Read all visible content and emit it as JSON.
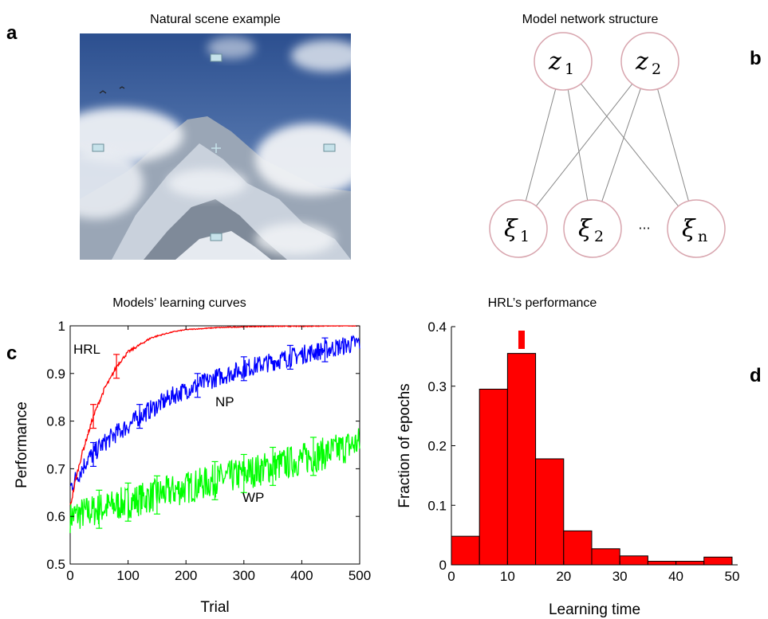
{
  "panels": {
    "a": {
      "letter": "a",
      "title": "Natural scene example"
    },
    "b": {
      "letter": "b",
      "title": "Model network structure"
    },
    "c": {
      "letter": "c",
      "title": "Models’ learning curves"
    },
    "d": {
      "letter": "d",
      "title": "HRL’s performance"
    }
  },
  "network": {
    "top_nodes": [
      {
        "sym": "z",
        "sub": "1"
      },
      {
        "sym": "z",
        "sub": "2"
      }
    ],
    "bottom_nodes": [
      {
        "sym": "ξ",
        "sub": "1"
      },
      {
        "sym": "ξ",
        "sub": "2"
      },
      {
        "sym": "ξ",
        "sub": "n"
      }
    ],
    "ellipsis": "···",
    "colors": {
      "node_border": "#d8a5ae",
      "edge": "#888888"
    }
  },
  "chart_data": [
    {
      "type": "line",
      "title": "Models’ learning curves",
      "xlabel": "Trial",
      "ylabel": "Performance",
      "xlim": [
        0,
        500
      ],
      "ylim": [
        0.5,
        1
      ],
      "xticks": [
        0,
        100,
        200,
        300,
        400,
        500
      ],
      "yticks": [
        0.5,
        0.6,
        0.7,
        0.8,
        0.9,
        1
      ],
      "ytick_labels": [
        "0.5",
        "0.6",
        "0.7",
        "0.8",
        "0.9",
        "1"
      ],
      "series": [
        {
          "name": "HRL",
          "color": "#ff0000",
          "x": [
            0,
            10,
            20,
            30,
            40,
            50,
            60,
            70,
            80,
            90,
            100,
            120,
            140,
            160,
            180,
            200,
            250,
            300,
            350,
            400,
            450,
            500
          ],
          "values": [
            0.62,
            0.68,
            0.73,
            0.77,
            0.81,
            0.84,
            0.87,
            0.89,
            0.915,
            0.93,
            0.945,
            0.96,
            0.975,
            0.982,
            0.988,
            0.992,
            0.996,
            0.998,
            0.999,
            0.999,
            1.0,
            1.0
          ]
        },
        {
          "name": "NP",
          "color": "#0000ff",
          "x": [
            0,
            10,
            20,
            30,
            40,
            50,
            60,
            70,
            80,
            100,
            120,
            140,
            160,
            180,
            200,
            250,
            300,
            350,
            400,
            450,
            500
          ],
          "values": [
            0.66,
            0.68,
            0.7,
            0.72,
            0.73,
            0.745,
            0.755,
            0.765,
            0.775,
            0.79,
            0.81,
            0.825,
            0.84,
            0.855,
            0.865,
            0.89,
            0.91,
            0.925,
            0.94,
            0.952,
            0.965
          ]
        },
        {
          "name": "WP",
          "color": "#00ff00",
          "x": [
            0,
            50,
            100,
            150,
            200,
            250,
            300,
            350,
            400,
            450,
            500
          ],
          "values": [
            0.6,
            0.615,
            0.63,
            0.645,
            0.66,
            0.675,
            0.69,
            0.705,
            0.72,
            0.735,
            0.755
          ]
        }
      ]
    },
    {
      "type": "bar",
      "title": "HRL’s performance",
      "xlabel": "Learning time",
      "ylabel": "Fraction of epochs",
      "xlim": [
        0,
        51
      ],
      "ylim": [
        0,
        0.4
      ],
      "xticks": [
        0,
        10,
        20,
        30,
        40,
        50
      ],
      "yticks": [
        0,
        0.1,
        0.2,
        0.3,
        0.4
      ],
      "bin_width": 5,
      "bin_starts": [
        0,
        5,
        10,
        15,
        20,
        25,
        30,
        35,
        40,
        45
      ],
      "values": [
        0.048,
        0.295,
        0.355,
        0.178,
        0.057,
        0.027,
        0.015,
        0.006,
        0.006,
        0.013
      ],
      "mean_marker": 12.5,
      "color": "#ff0000"
    }
  ]
}
